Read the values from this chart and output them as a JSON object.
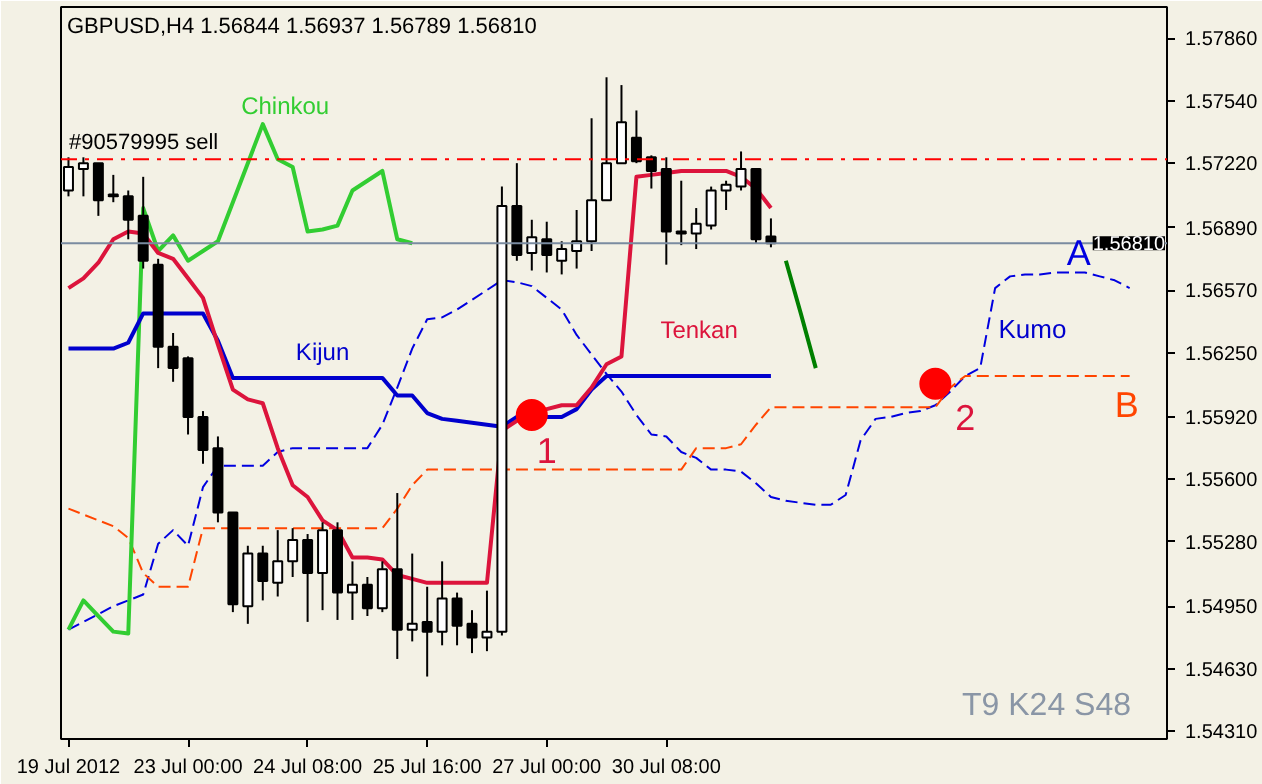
{
  "chart_data": {
    "type": "candlestick",
    "title": "GBPUSD,H4  1.56844 1.56937 1.56789 1.56810",
    "categories": [
      "19 Jul 2012",
      null,
      null,
      null,
      null,
      null,
      null,
      null,
      "23 Jul 00:00",
      null,
      null,
      null,
      null,
      null,
      null,
      null,
      "24 Jul 08:00",
      null,
      null,
      null,
      null,
      null,
      null,
      null,
      "25 Jul 16:00",
      null,
      null,
      null,
      null,
      null,
      null,
      null,
      "27 Jul 00:00",
      null,
      null,
      null,
      null,
      null,
      null,
      null,
      "30 Jul 08:00",
      null,
      null,
      null,
      null,
      null,
      null,
      null,
      null,
      null,
      null,
      null,
      null,
      null,
      null,
      null,
      null,
      null,
      null,
      null,
      null,
      null,
      null,
      null,
      null,
      null,
      null,
      null,
      null,
      null,
      null,
      null,
      null,
      null
    ],
    "ohlc": [
      [
        1.5708,
        1.5725,
        1.5705,
        1.572
      ],
      [
        1.5719,
        1.5725,
        1.5705,
        1.5722
      ],
      [
        1.5722,
        1.5722,
        1.5695,
        1.5703
      ],
      [
        1.5706,
        1.5716,
        1.5702,
        1.5705
      ],
      [
        1.5705,
        1.5708,
        1.5683,
        1.5693
      ],
      [
        1.5695,
        1.5715,
        1.5668,
        1.5672
      ],
      [
        1.567,
        1.5673,
        1.5617,
        1.5628
      ],
      [
        1.5628,
        1.5635,
        1.561,
        1.5617
      ],
      [
        1.5622,
        1.5623,
        1.5583,
        1.5592
      ],
      [
        1.5592,
        1.5595,
        1.5568,
        1.5575
      ],
      [
        1.5576,
        1.5582,
        1.5538,
        1.5543
      ],
      [
        1.5543,
        1.5543,
        1.5492,
        1.5496
      ],
      [
        1.5495,
        1.5526,
        1.5486,
        1.5522
      ],
      [
        1.5522,
        1.5526,
        1.5498,
        1.5508
      ],
      [
        1.5507,
        1.5534,
        1.55,
        1.5518
      ],
      [
        1.5518,
        1.5535,
        1.551,
        1.5529
      ],
      [
        1.5529,
        1.5532,
        1.5487,
        1.5512
      ],
      [
        1.5512,
        1.5538,
        1.5493,
        1.5534
      ],
      [
        1.5534,
        1.5538,
        1.5488,
        1.5502
      ],
      [
        1.5502,
        1.5518,
        1.5488,
        1.5506
      ],
      [
        1.5506,
        1.551,
        1.549,
        1.5494
      ],
      [
        1.5494,
        1.5518,
        1.5492,
        1.5514
      ],
      [
        1.5514,
        1.5553,
        1.5468,
        1.5483
      ],
      [
        1.5483,
        1.5522,
        1.5477,
        1.5486
      ],
      [
        1.5487,
        1.5505,
        1.5459,
        1.5482
      ],
      [
        1.5482,
        1.5518,
        1.5475,
        1.5499
      ],
      [
        1.5499,
        1.5502,
        1.5475,
        1.5485
      ],
      [
        1.5486,
        1.5493,
        1.5471,
        1.5479
      ],
      [
        1.5479,
        1.5503,
        1.5472,
        1.5482
      ],
      [
        1.5482,
        1.571,
        1.548,
        1.57
      ],
      [
        1.57,
        1.5722,
        1.5672,
        1.5675
      ],
      [
        1.5676,
        1.5693,
        1.5667,
        1.5684
      ],
      [
        1.5683,
        1.5692,
        1.5666,
        1.5675
      ],
      [
        1.5672,
        1.5682,
        1.5665,
        1.5678
      ],
      [
        1.5677,
        1.5698,
        1.5668,
        1.5682
      ],
      [
        1.5682,
        1.5745,
        1.5677,
        1.5703
      ],
      [
        1.5703,
        1.5766,
        1.5703,
        1.5722
      ],
      [
        1.5722,
        1.5762,
        1.5722,
        1.5743
      ],
      [
        1.5735,
        1.5749,
        1.5722,
        1.5723
      ],
      [
        1.5725,
        1.5726,
        1.5709,
        1.5718
      ],
      [
        1.5719,
        1.5725,
        1.567,
        1.5687
      ],
      [
        1.5687,
        1.5713,
        1.568,
        1.5686
      ],
      [
        1.5686,
        1.5699,
        1.5678,
        1.5691
      ],
      [
        1.569,
        1.571,
        1.5688,
        1.5708
      ],
      [
        1.5708,
        1.5713,
        1.5698,
        1.5711
      ],
      [
        1.571,
        1.5728,
        1.5708,
        1.5719
      ],
      [
        1.5719,
        1.5719,
        1.5681,
        1.5683
      ],
      [
        1.56844,
        1.56937,
        1.56789,
        1.5681
      ],
      null,
      null,
      null,
      null,
      null,
      null,
      null,
      null,
      null,
      null,
      null,
      null,
      null,
      null,
      null,
      null,
      null,
      null,
      null,
      null,
      null,
      null,
      null,
      null,
      null,
      null
    ],
    "colors": [
      "#ffffff",
      "#ffffff",
      "#000000",
      "#000000",
      "#000000",
      "#000000",
      "#000000",
      "#000000",
      "#000000",
      "#000000",
      "#000000",
      "#000000",
      "#ffffff",
      "#000000",
      "#ffffff",
      "#ffffff",
      "#000000",
      "#ffffff",
      "#000000",
      "#ffffff",
      "#000000",
      "#ffffff",
      "#000000",
      "#ffffff",
      "#000000",
      "#ffffff",
      "#000000",
      "#000000",
      "#ffffff",
      "#ffffff",
      "#000000",
      "#ffffff",
      "#000000",
      "#ffffff",
      "#ffffff",
      "#ffffff",
      "#ffffff",
      "#ffffff",
      "#000000",
      "#000000",
      "#000000",
      "#000000",
      "#ffffff",
      "#ffffff",
      "#ffffff",
      "#ffffff",
      "#000000",
      "#000000",
      null,
      null,
      null,
      null,
      null,
      null,
      null,
      null,
      null,
      null,
      null,
      null,
      null,
      null,
      null,
      null,
      null,
      null,
      null,
      null,
      null,
      null,
      null,
      null,
      null,
      null
    ],
    "series": [
      {
        "type": "line",
        "line_style": "dashed",
        "color": "#0000e0",
        "values": [
          1.5483,
          1.5487,
          1.5491,
          1.5495,
          1.5498,
          1.5501,
          1.5527,
          1.5534,
          1.5526,
          1.5556,
          1.5567,
          1.5567,
          1.5567,
          1.5567,
          1.5574,
          1.5576,
          1.5576,
          1.5576,
          1.5576,
          1.5576,
          1.5576,
          1.5588,
          1.5607,
          1.5627,
          1.5642,
          1.5643,
          1.5647,
          1.5652,
          1.5657,
          1.5662,
          1.5661,
          1.5659,
          1.5653,
          1.5647,
          1.5634,
          1.5624,
          1.5614,
          1.5605,
          1.5593,
          1.5583,
          1.5582,
          1.5574,
          1.5571,
          1.5565,
          1.5565,
          1.5564,
          1.5558,
          1.5551,
          1.5549,
          1.5548,
          1.5547,
          1.5547,
          1.5552,
          1.558,
          1.5591,
          1.5592,
          1.5594,
          1.5595,
          1.5598,
          1.5605,
          1.5613,
          1.5617,
          1.5658,
          1.5664,
          1.5665,
          1.5665,
          1.5666,
          1.5666,
          1.5666,
          1.5664,
          1.5662,
          1.5658,
          null,
          null
        ]
      },
      {
        "type": "line",
        "line_style": "dashed",
        "color": "#ff4500",
        "values": [
          1.5545,
          1.5542,
          1.5539,
          1.5536,
          1.553,
          1.5512,
          1.5505,
          1.5505,
          1.5505,
          1.5535,
          1.5535,
          1.5535,
          1.5535,
          1.5535,
          1.5535,
          1.5535,
          1.5535,
          1.5535,
          1.5535,
          1.5535,
          1.5535,
          1.5535,
          1.5545,
          1.5557,
          1.5565,
          1.5565,
          1.5565,
          1.5565,
          1.5565,
          1.5565,
          1.5565,
          1.5565,
          1.5565,
          1.5565,
          1.5565,
          1.5565,
          1.5565,
          1.5565,
          1.5565,
          1.5565,
          1.5565,
          1.5565,
          1.5576,
          1.5576,
          1.5576,
          1.5578,
          1.5588,
          1.5597,
          1.5597,
          1.5597,
          1.5597,
          1.5597,
          1.5597,
          1.5597,
          1.5597,
          1.5597,
          1.5597,
          1.5597,
          1.5597,
          1.5607,
          1.5613,
          1.5613,
          1.5613,
          1.5613,
          1.5613,
          1.5613,
          1.5613,
          1.5613,
          1.5613,
          1.5613,
          1.5613,
          1.5613,
          null,
          null
        ]
      },
      {
        "type": "line",
        "name": "Chinkou",
        "color": "#32cd32",
        "values": [
          1.5483,
          1.5498,
          1.549,
          1.5482,
          1.5481,
          1.5699,
          1.5677,
          1.5685,
          1.5672,
          1.5677,
          1.5682,
          1.5702,
          1.5722,
          1.5742,
          1.5724,
          1.572,
          1.5687,
          1.5688,
          1.569,
          1.5708,
          1.5713,
          1.5718,
          1.5683,
          1.5681,
          null,
          null,
          null,
          null,
          null,
          null,
          null,
          null,
          null,
          null,
          null,
          null,
          null,
          null,
          null,
          null,
          null,
          null,
          null,
          null,
          null,
          null,
          null,
          null,
          null,
          null,
          null,
          null,
          null,
          null,
          null,
          null,
          null,
          null,
          null,
          null,
          null,
          null,
          null,
          null,
          null,
          null,
          null,
          null,
          null,
          null,
          null,
          null,
          null,
          null
        ]
      },
      {
        "type": "line",
        "name": "Kijun",
        "color": "#0000cd",
        "values": [
          1.5627,
          1.5627,
          1.5627,
          1.5627,
          1.563,
          1.5645,
          1.5645,
          1.5645,
          1.5645,
          1.5645,
          1.5631,
          1.5612,
          1.5612,
          1.5612,
          1.5612,
          1.5612,
          1.5612,
          1.5612,
          1.5612,
          1.5612,
          1.5612,
          1.5612,
          1.5603,
          1.5603,
          1.5594,
          1.5591,
          1.559,
          1.5589,
          1.5588,
          1.5587,
          1.5592,
          1.5592,
          1.5592,
          1.5592,
          1.5596,
          1.5606,
          1.5613,
          1.5613,
          1.5613,
          1.5613,
          1.5613,
          1.5613,
          1.5613,
          1.5613,
          1.5613,
          1.5613,
          1.5613,
          1.5613,
          null,
          null,
          null,
          null,
          null,
          null,
          null,
          null,
          null,
          null,
          null,
          null,
          null,
          null,
          null,
          null,
          null,
          null,
          null,
          null,
          null,
          null,
          null,
          null,
          null,
          null
        ]
      },
      {
        "type": "line",
        "name": "Tenkan",
        "color": "#dc143c",
        "values": [
          1.5658,
          1.5663,
          1.5671,
          1.5683,
          1.5687,
          1.5686,
          1.5676,
          1.5673,
          1.5663,
          1.5653,
          1.5629,
          1.5606,
          1.5601,
          1.5599,
          1.5576,
          1.5557,
          1.5551,
          1.5539,
          1.5534,
          1.552,
          1.552,
          1.5519,
          1.5511,
          1.5509,
          1.5507,
          1.5507,
          1.5507,
          1.5507,
          1.5507,
          1.5585,
          1.559,
          1.5593,
          1.5596,
          1.5598,
          1.5598,
          1.5607,
          1.5619,
          1.5623,
          1.5715,
          1.5716,
          1.5717,
          1.5718,
          1.5718,
          1.5718,
          1.5718,
          1.5715,
          1.5709,
          1.5699,
          null,
          null,
          null,
          null,
          null,
          null,
          null,
          null,
          null,
          null,
          null,
          null,
          null,
          null,
          null,
          null,
          null,
          null,
          null,
          null,
          null,
          null,
          null,
          null,
          null,
          null
        ]
      },
      {
        "type": "line",
        "color": "#008000",
        "values": [
          null,
          null,
          null,
          null,
          null,
          null,
          null,
          null,
          null,
          null,
          null,
          null,
          null,
          null,
          null,
          null,
          null,
          null,
          null,
          null,
          null,
          null,
          null,
          null,
          null,
          null,
          null,
          null,
          null,
          null,
          null,
          null,
          null,
          null,
          null,
          null,
          null,
          null,
          null,
          null,
          null,
          null,
          null,
          null,
          null,
          null,
          null,
          null,
          1.5672,
          1.5645,
          1.5617,
          null,
          null,
          null,
          null,
          null,
          null,
          null,
          null,
          null,
          null,
          null,
          null,
          null,
          null,
          null,
          null,
          null,
          null,
          null,
          null,
          null,
          null,
          null
        ]
      },
      {
        "type": "scatter",
        "marker": "circle",
        "color": "#ff0000",
        "values": [
          null,
          null,
          null,
          null,
          null,
          null,
          null,
          null,
          null,
          null,
          null,
          null,
          null,
          null,
          null,
          null,
          null,
          null,
          null,
          null,
          null,
          null,
          null,
          null,
          null,
          null,
          null,
          null,
          null,
          null,
          null,
          1.5593,
          null,
          null,
          null,
          null,
          null,
          null,
          null,
          null,
          null,
          null,
          null,
          null,
          null,
          null,
          null,
          null,
          null,
          null,
          null,
          null,
          null,
          null,
          null,
          null,
          null,
          null,
          1.5609,
          null,
          null,
          null,
          null,
          null,
          null,
          null,
          null,
          null,
          null,
          null,
          null,
          null,
          null,
          null
        ]
      }
    ],
    "ref_lines": [
      {
        "axis": "y",
        "value": 1.5724,
        "label": "#90579995 sell",
        "color": "#ff0000",
        "line_style": "dashed"
      },
      {
        "axis": "y",
        "value": 1.5681,
        "label": "1.56810",
        "color": "#7a8ba0",
        "line_style": "solid"
      }
    ],
    "annotations": [
      "A",
      "B",
      "Kumo",
      "1",
      "2",
      "T9 K24 S48"
    ],
    "ylim": [
      1.5427,
      1.5802
    ],
    "yticks": [
      {
        "value": 1.5786,
        "label": "1.57860"
      },
      {
        "value": 1.5754,
        "label": "1.57540"
      },
      {
        "value": 1.5722,
        "label": "1.57220"
      },
      {
        "value": 1.5689,
        "label": "1.56890"
      },
      {
        "value": 1.5657,
        "label": "1.56570"
      },
      {
        "value": 1.5625,
        "label": "1.56250"
      },
      {
        "value": 1.5592,
        "label": "1.55920"
      },
      {
        "value": 1.556,
        "label": "1.55600"
      },
      {
        "value": 1.5528,
        "label": "1.55280"
      },
      {
        "value": 1.5495,
        "label": "1.54950"
      },
      {
        "value": 1.5463,
        "label": "1.54630"
      },
      {
        "value": 1.5431,
        "label": "1.54310"
      }
    ]
  }
}
